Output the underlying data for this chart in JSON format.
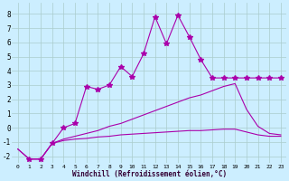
{
  "xlabel": "Windchill (Refroidissement éolien,°C)",
  "background_color": "#cceeff",
  "grid_color": "#aacccc",
  "line_color": "#aa00aa",
  "x_ticks": [
    0,
    1,
    2,
    3,
    4,
    5,
    6,
    7,
    8,
    9,
    10,
    11,
    12,
    13,
    14,
    15,
    16,
    17,
    18,
    19,
    20,
    21,
    22,
    23
  ],
  "ylim": [
    -2.5,
    8.8
  ],
  "xlim": [
    -0.5,
    23.5
  ],
  "series1_x": [
    0,
    1,
    2,
    3,
    4,
    5,
    6,
    7,
    8,
    9,
    10,
    11,
    12,
    13,
    14,
    15,
    16,
    17,
    18,
    19,
    20,
    21,
    22,
    23
  ],
  "series1_y": [
    -1.5,
    -2.2,
    -2.2,
    -1.1,
    -0.9,
    -0.8,
    -0.75,
    -0.65,
    -0.6,
    -0.5,
    -0.45,
    -0.4,
    -0.35,
    -0.3,
    -0.25,
    -0.2,
    -0.2,
    -0.15,
    -0.1,
    -0.1,
    -0.3,
    -0.5,
    -0.6,
    -0.6
  ],
  "series2_x": [
    0,
    1,
    2,
    3,
    4,
    5,
    6,
    7,
    8,
    9,
    10,
    11,
    12,
    13,
    14,
    15,
    16,
    17,
    18,
    19,
    20,
    21,
    22,
    23
  ],
  "series2_y": [
    -1.5,
    -2.2,
    -2.2,
    -1.1,
    -0.8,
    -0.6,
    -0.4,
    -0.2,
    0.1,
    0.3,
    0.6,
    0.9,
    1.2,
    1.5,
    1.8,
    2.1,
    2.3,
    2.6,
    2.9,
    3.1,
    1.3,
    0.1,
    -0.4,
    -0.5
  ],
  "series3_x": [
    1,
    2,
    3,
    4,
    5,
    6,
    7,
    8,
    9,
    10,
    11,
    12,
    13,
    14,
    15,
    16,
    17,
    18,
    19,
    20,
    21,
    22,
    23
  ],
  "series3_y": [
    -2.2,
    -2.2,
    -1.1,
    0.0,
    0.3,
    2.9,
    2.7,
    3.0,
    4.3,
    3.6,
    5.2,
    7.8,
    5.9,
    7.9,
    6.4,
    4.8,
    3.5,
    3.5,
    3.5,
    3.5,
    3.5,
    3.5,
    3.5
  ],
  "yticks": [
    -2,
    -1,
    0,
    1,
    2,
    3,
    4,
    5,
    6,
    7,
    8
  ]
}
